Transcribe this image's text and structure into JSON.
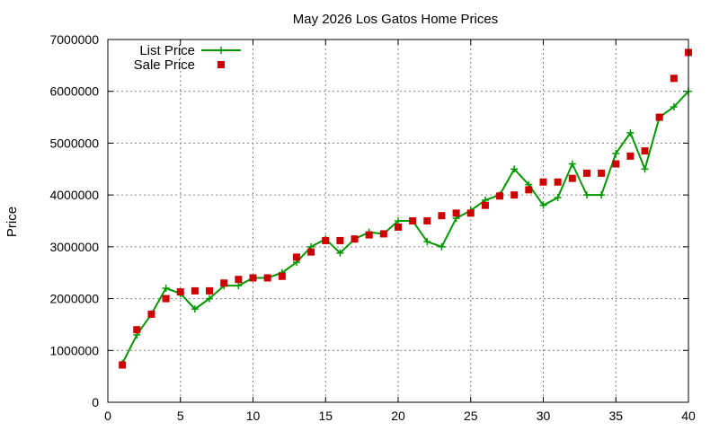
{
  "chart_data": {
    "type": "line",
    "title": "May 2026 Los Gatos Home Prices",
    "xlabel": "",
    "ylabel": "Price",
    "xlim": [
      0,
      40
    ],
    "ylim": [
      0,
      7000000
    ],
    "xticks": [
      0,
      5,
      10,
      15,
      20,
      25,
      30,
      35,
      40
    ],
    "yticks": [
      0,
      1000000,
      2000000,
      3000000,
      4000000,
      5000000,
      6000000,
      7000000
    ],
    "grid": true,
    "legend_position": "top-left",
    "series": [
      {
        "name": "List Price",
        "style": "line-plus",
        "color": "#009900",
        "x": [
          1,
          2,
          3,
          4,
          5,
          6,
          7,
          8,
          9,
          10,
          11,
          12,
          13,
          14,
          15,
          16,
          17,
          18,
          19,
          20,
          21,
          22,
          23,
          24,
          25,
          26,
          27,
          28,
          29,
          30,
          31,
          32,
          33,
          34,
          35,
          36,
          37,
          38,
          39,
          40
        ],
        "values": [
          750000,
          1300000,
          1700000,
          2200000,
          2100000,
          1800000,
          2000000,
          2250000,
          2250000,
          2400000,
          2400000,
          2500000,
          2700000,
          3000000,
          3150000,
          2880000,
          3150000,
          3280000,
          3250000,
          3500000,
          3500000,
          3100000,
          3000000,
          3550000,
          3700000,
          3900000,
          4000000,
          4500000,
          4200000,
          3800000,
          3950000,
          4600000,
          4000000,
          4000000,
          4800000,
          5200000,
          4500000,
          5500000,
          5700000,
          6000000
        ]
      },
      {
        "name": "Sale Price",
        "style": "square-markers",
        "color": "#cc0000",
        "x": [
          1,
          2,
          3,
          4,
          5,
          6,
          7,
          8,
          9,
          10,
          11,
          12,
          13,
          14,
          15,
          16,
          17,
          18,
          19,
          20,
          21,
          22,
          23,
          24,
          25,
          26,
          27,
          28,
          29,
          30,
          31,
          32,
          33,
          34,
          35,
          36,
          37,
          38,
          39,
          40
        ],
        "values": [
          720000,
          1400000,
          1700000,
          2000000,
          2130000,
          2150000,
          2150000,
          2300000,
          2370000,
          2400000,
          2400000,
          2430000,
          2800000,
          2900000,
          3120000,
          3120000,
          3150000,
          3230000,
          3250000,
          3380000,
          3500000,
          3500000,
          3600000,
          3650000,
          3650000,
          3800000,
          3980000,
          4000000,
          4100000,
          4250000,
          4250000,
          4320000,
          4420000,
          4420000,
          4600000,
          4750000,
          4850000,
          5500000,
          6250000,
          6750000
        ]
      }
    ]
  }
}
